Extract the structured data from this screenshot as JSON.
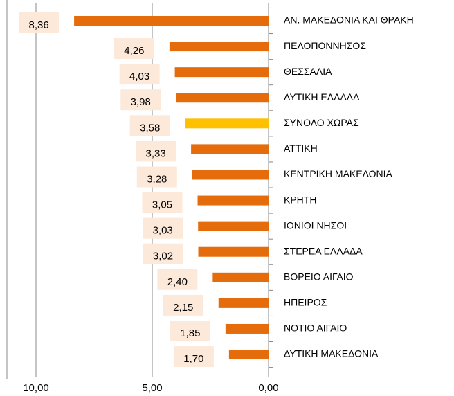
{
  "chart_data": {
    "type": "bar",
    "orientation": "horizontal",
    "x_reversed": true,
    "categories": [
      "ΑΝ. ΜΑΚΕΔΟΝΙΑ ΚΑΙ ΘΡΑΚΗ",
      "ΠΕΛΟΠΟΝΝΗΣΟΣ",
      "ΘΕΣΣΑΛΙΑ",
      "ΔΥΤΙΚΗ ΕΛΛΑΔΑ",
      "ΣΥΝΟΛΟ ΧΩΡΑΣ",
      "ΑΤΤΙΚΗ",
      "ΚΕΝΤΡΙΚΗ ΜΑΚΕΔΟΝΙΑ",
      "ΚΡΗΤΗ",
      "ΙΟΝΙΟΙ ΝΗΣΟΙ",
      "ΣΤΕΡΕΑ ΕΛΛΑΔΑ",
      "ΒΟΡΕΙΟ ΑΙΓΑΙΟ",
      "ΗΠΕΙΡΟΣ",
      "ΝΟΤΙΟ ΑΙΓΑΙΟ",
      "ΔΥΤΙΚΗ ΜΑΚΕΔΟΝΙΑ"
    ],
    "values": [
      8.36,
      4.26,
      4.03,
      3.98,
      3.58,
      3.33,
      3.28,
      3.05,
      3.03,
      3.02,
      2.4,
      2.15,
      1.85,
      1.7
    ],
    "value_labels": [
      "8,36",
      "4,26",
      "4,03",
      "3,98",
      "3,58",
      "3,33",
      "3,28",
      "3,05",
      "3,03",
      "3,02",
      "2,40",
      "2,15",
      "1,85",
      "1,70"
    ],
    "colors": [
      "#e46c0a",
      "#e46c0a",
      "#e46c0a",
      "#e46c0a",
      "#ffc000",
      "#e46c0a",
      "#e46c0a",
      "#e46c0a",
      "#e46c0a",
      "#e46c0a",
      "#e46c0a",
      "#e46c0a",
      "#e46c0a",
      "#e46c0a"
    ],
    "xlim": [
      0,
      10
    ],
    "xticks": [
      {
        "value": 10,
        "label": "10,00"
      },
      {
        "value": 5,
        "label": "5,00"
      },
      {
        "value": 0,
        "label": "0,00"
      }
    ],
    "grid": true
  }
}
